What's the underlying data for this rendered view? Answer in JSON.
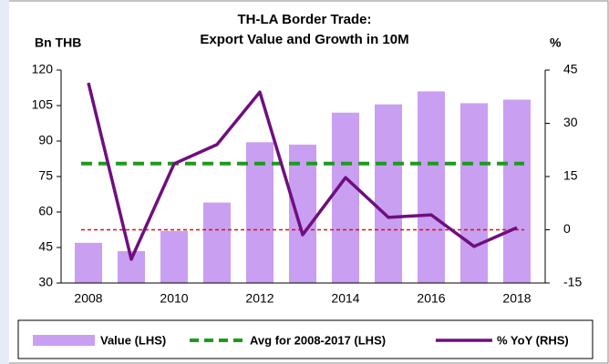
{
  "chart_data": {
    "type": "bar-line",
    "title": [
      "TH-LA Border Trade:",
      "Export Value and Growth in 10M"
    ],
    "y_label": "Bn THB",
    "y2_label": "%",
    "categories": [
      "2008",
      null,
      "2010",
      null,
      "2012",
      null,
      "2014",
      null,
      "2016",
      null,
      "2018"
    ],
    "series": [
      {
        "name": "Value (LHS)",
        "kind": "bar",
        "color": "#c99ff2",
        "values": [
          47,
          43.5,
          52,
          64,
          89.5,
          88.5,
          102,
          105.5,
          111,
          106,
          107.5
        ]
      },
      {
        "name": "Avg for 2008-2017 (LHS)",
        "kind": "dashed-line",
        "color": "#1e9a1e",
        "values": [
          80.5,
          80.5,
          80.5,
          80.5,
          80.5,
          80.5,
          80.5,
          80.5,
          80.5,
          80.5,
          80.5
        ]
      },
      {
        "name": "% YoY (RHS)",
        "kind": "line",
        "axis": "y2",
        "color": "#6f0f7f",
        "values": [
          41.4,
          -8.3,
          18.6,
          24,
          38.8,
          -1.4,
          14.7,
          3.5,
          4.2,
          -4.7,
          0.6
        ]
      }
    ],
    "reference_line": {
      "value": 0,
      "axis": "y2",
      "color": "#e01010"
    },
    "ylim": [
      30,
      120
    ],
    "yticks": [
      30,
      45,
      60,
      75,
      90,
      105,
      120
    ],
    "y2lim": [
      -15,
      45
    ],
    "y2ticks": [
      -15,
      0,
      15,
      30,
      45
    ],
    "legend": "bottom"
  }
}
